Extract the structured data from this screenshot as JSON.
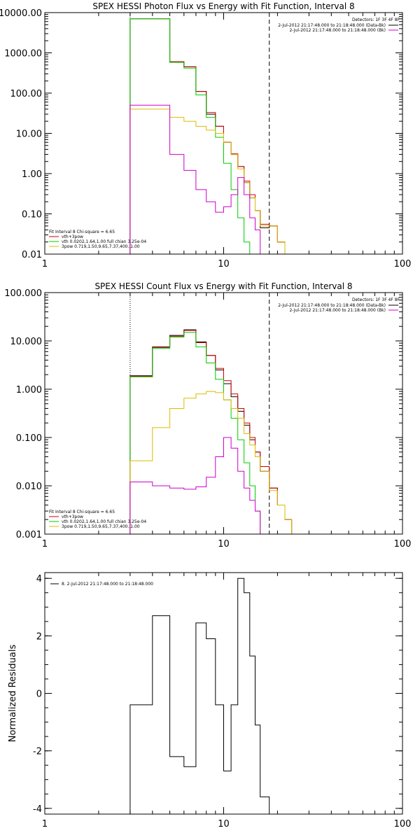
{
  "chart_data": [
    {
      "type": "line",
      "title": "SPEX HESSI Photon Flux vs Energy with Fit Function, Interval 8",
      "xscale": "log",
      "yscale": "log",
      "xlim": [
        1,
        100
      ],
      "ylim": [
        0.01,
        10000
      ],
      "xticks": [
        {
          "v": 1,
          "label": "1"
        },
        {
          "v": 10,
          "label": "10"
        },
        {
          "v": 100,
          "label": "100"
        }
      ],
      "yticks": [
        {
          "v": 10000,
          "label": "10000.00"
        },
        {
          "v": 1000,
          "label": "1000.00"
        },
        {
          "v": 100,
          "label": "100.00"
        },
        {
          "v": 10,
          "label": "10.00"
        },
        {
          "v": 1,
          "label": "1.00"
        },
        {
          "v": 0.1,
          "label": "0.10"
        },
        {
          "v": 0.01,
          "label": "0.01"
        }
      ],
      "vlines": [
        {
          "x": 3.0,
          "style": "dotted"
        },
        {
          "x": 18.0,
          "style": "dashed"
        }
      ],
      "legend_tr": {
        "header": "Detectors: 1F 3F 4F 8F",
        "items": [
          {
            "label": "2-Jul-2012 21:17:48.000 to 21:18:48.000 (Data-Bk)",
            "color": "#000000"
          },
          {
            "label": "2-Jul-2012 21:17:48.000 to 21:18:48.000 (Bk)",
            "color": "#cc00cc"
          }
        ]
      },
      "legend_bl": {
        "header": "Fit Interval  8    Chi-square = 6.65",
        "items": [
          {
            "label": "vth+3pow",
            "color": "#cc0000"
          },
          {
            "label": "vth 0.0202,1.64,1.00  full chian 3.25e-04",
            "color": "#00cc00"
          },
          {
            "label": "3pow 0.719,1.50,9.65,7.37,400.,1.00",
            "color": "#ddbb00"
          }
        ]
      },
      "edges": [
        3.0,
        4.0,
        5.0,
        6.0,
        7.0,
        8.0,
        9.0,
        10.0,
        11.0,
        12.0,
        13.0,
        14.0,
        15.0,
        16.0,
        18.0,
        20.0,
        22.0,
        24.0
      ],
      "series": [
        {
          "name": "Data-Bk",
          "color": "#000000",
          "values": [
            7000,
            7000,
            600,
            450,
            110,
            30,
            15,
            6,
            3,
            1.5,
            0.6,
            0.25,
            0.12,
            0.045,
            0.05,
            0.02,
            0.01
          ]
        },
        {
          "name": "vth+3pow",
          "color": "#cc0000",
          "values": [
            7000,
            7000,
            600,
            450,
            110,
            33,
            15,
            6,
            3.1,
            1.5,
            0.65,
            0.3,
            0.12,
            0.055,
            0.05,
            0.02,
            0.01
          ]
        },
        {
          "name": "vth",
          "color": "#00cc00",
          "values": [
            7000,
            7000,
            580,
            420,
            90,
            25,
            8,
            1.8,
            0.4,
            0.08,
            0.02,
            0.007
          ]
        },
        {
          "name": "3pow",
          "color": "#ddbb00",
          "values": [
            40,
            40,
            25,
            20,
            15,
            12,
            10,
            6,
            3,
            1.3,
            0.6,
            0.25,
            0.12,
            0.05,
            0.05,
            0.02,
            0.01
          ]
        },
        {
          "name": "Bk",
          "color": "#cc00cc",
          "values": [
            50,
            50,
            3,
            1.2,
            0.4,
            0.2,
            0.11,
            0.15,
            0.3,
            0.8,
            0.3,
            0.08,
            0.04,
            0.01
          ]
        }
      ]
    },
    {
      "type": "line",
      "title": "SPEX HESSI Count Flux vs Energy with Fit Function, Interval 8",
      "xscale": "log",
      "yscale": "log",
      "xlim": [
        1,
        100
      ],
      "ylim": [
        0.001,
        100
      ],
      "xticks": [
        {
          "v": 1,
          "label": "1"
        },
        {
          "v": 10,
          "label": "10"
        },
        {
          "v": 100,
          "label": "100"
        }
      ],
      "yticks": [
        {
          "v": 100,
          "label": "100.000"
        },
        {
          "v": 10,
          "label": "10.000"
        },
        {
          "v": 1,
          "label": "1.000"
        },
        {
          "v": 0.1,
          "label": "0.100"
        },
        {
          "v": 0.01,
          "label": "0.010"
        },
        {
          "v": 0.001,
          "label": "0.001"
        }
      ],
      "vlines": [
        {
          "x": 3.0,
          "style": "dotted"
        },
        {
          "x": 18.0,
          "style": "dashed"
        }
      ],
      "legend_tr": {
        "header": "Detectors: 1F 3F 4F 8F",
        "items": [
          {
            "label": "2-Jul-2012 21:17:48.000 to 21:18:48.000 (Data-Bk)",
            "color": "#000000"
          },
          {
            "label": "2-Jul-2012 21:17:48.000 to 21:18:48.000 (Bk)",
            "color": "#cc00cc"
          }
        ]
      },
      "legend_bl": {
        "header": "Fit Interval  8    Chi-square = 6.65",
        "items": [
          {
            "label": "vth+3pow",
            "color": "#cc0000"
          },
          {
            "label": "vth 0.0202,1.64,1.00  full chian 3.25e-04",
            "color": "#00cc00"
          },
          {
            "label": "3pow 0.719,1.50,9.65,7.37,400.,1.00",
            "color": "#ddbb00"
          }
        ]
      },
      "edges": [
        3.0,
        4.0,
        5.0,
        6.0,
        7.0,
        8.0,
        9.0,
        10.0,
        11.0,
        12.0,
        13.0,
        14.0,
        15.0,
        16.0,
        18.0,
        20.0,
        22.0,
        24.0
      ],
      "series": [
        {
          "name": "Data-Bk",
          "color": "#000000",
          "values": [
            1.9,
            7.5,
            13,
            17,
            9.5,
            5,
            2.5,
            1.3,
            0.7,
            0.35,
            0.18,
            0.09,
            0.05,
            0.02,
            0.009,
            0.004,
            0.002
          ]
        },
        {
          "name": "vth+3pow",
          "color": "#cc0000",
          "values": [
            1.85,
            7.3,
            12.5,
            16.5,
            9.2,
            5,
            2.7,
            1.5,
            0.8,
            0.4,
            0.2,
            0.1,
            0.05,
            0.025,
            0.009,
            0.004,
            0.002
          ]
        },
        {
          "name": "vth",
          "color": "#00cc00",
          "values": [
            1.8,
            7,
            12,
            15,
            7.5,
            3.5,
            1.6,
            0.6,
            0.25,
            0.09,
            0.03,
            0.01,
            0.003,
            0.001
          ]
        },
        {
          "name": "3pow",
          "color": "#ddbb00",
          "values": [
            0.033,
            0.16,
            0.4,
            0.65,
            0.8,
            0.9,
            0.85,
            0.6,
            0.4,
            0.25,
            0.12,
            0.07,
            0.04,
            0.02,
            0.008,
            0.004,
            0.002
          ]
        },
        {
          "name": "Bk",
          "color": "#cc00cc",
          "values": [
            0.012,
            0.01,
            0.009,
            0.0085,
            0.0095,
            0.015,
            0.04,
            0.1,
            0.06,
            0.02,
            0.009,
            0.005,
            0.003,
            0.001
          ]
        }
      ]
    },
    {
      "type": "line",
      "title": "",
      "ylabel": "Normalized Residuals",
      "xscale": "log",
      "yscale": "linear",
      "xlim": [
        1,
        100
      ],
      "ylim": [
        -4.2,
        4.2
      ],
      "xticks": [
        {
          "v": 1,
          "label": "1"
        },
        {
          "v": 10,
          "label": "10"
        },
        {
          "v": 100,
          "label": "100"
        }
      ],
      "yticks": [
        {
          "v": 4,
          "label": "4"
        },
        {
          "v": 2,
          "label": "2"
        },
        {
          "v": 0,
          "label": "0"
        },
        {
          "v": -2,
          "label": "-2"
        },
        {
          "v": -4,
          "label": "-4"
        }
      ],
      "legend_tl": {
        "items": [
          {
            "label": "8.  2-Jul-2012 21:17:48.000 to 21:18:48.000",
            "color": "#000000"
          }
        ]
      },
      "edges": [
        3.0,
        3.5,
        4.0,
        5.0,
        6.0,
        7.0,
        8.0,
        9.0,
        10.0,
        11.0,
        12.0,
        13.0,
        14.0,
        15.0,
        16.0,
        17.0,
        18.0
      ],
      "series": [
        {
          "name": "residuals",
          "color": "#000000",
          "values": [
            -0.4,
            -0.4,
            2.7,
            -2.2,
            -2.55,
            2.45,
            1.9,
            -0.4,
            -2.7,
            -0.4,
            4.0,
            3.5,
            1.3,
            -1.1,
            -3.6,
            -3.6
          ]
        }
      ]
    }
  ]
}
